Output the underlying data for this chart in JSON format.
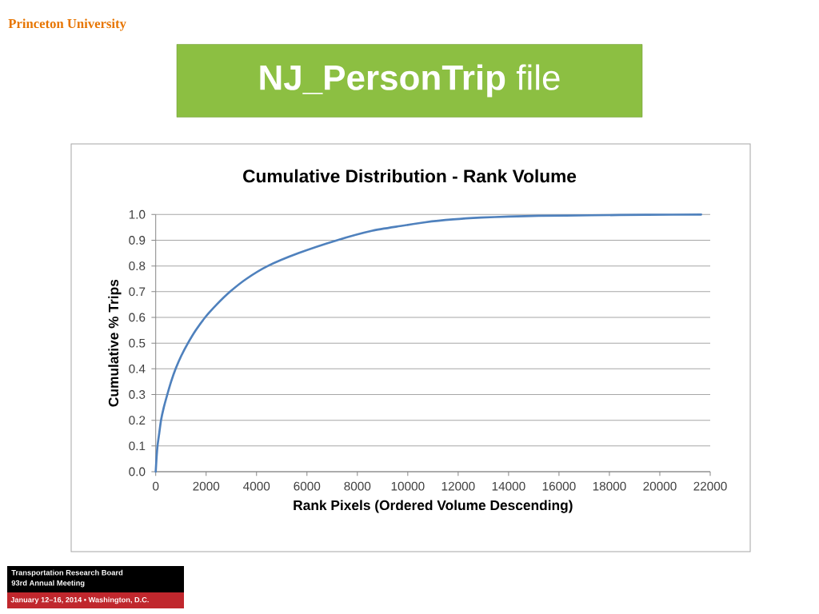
{
  "chart_data": {
    "type": "line",
    "title": "**NJ_PersonTrip** file",
    "subtitle": "Cumulative Distribution - Rank Volume",
    "xlabel": "Rank Pixels (Ordered Volume Descending)",
    "ylabel": "Cumulative % Trips",
    "annotations": [
      "Princeton University",
      "Transportation Research Board",
      "93rd Annual Meeting",
      "January 12–16, 2014 • Washington, D.C."
    ],
    "x": [
      0,
      30,
      70,
      140,
      210,
      320,
      460,
      610,
      790,
      1010,
      1280,
      1590,
      1960,
      2420,
      2950,
      3600,
      4450,
      5670,
      7200,
      8600,
      9700,
      10700,
      11800,
      12900,
      14000,
      15200,
      17300,
      19500,
      21640
    ],
    "series": [
      {
        "color": "#4f81bd",
        "values": [
          0,
          0.05,
          0.1,
          0.15,
          0.2,
          0.25,
          0.3,
          0.35,
          0.4,
          0.45,
          0.5,
          0.55,
          0.6,
          0.65,
          0.7,
          0.75,
          0.8,
          0.85,
          0.9,
          0.937,
          0.955,
          0.97,
          0.981,
          0.988,
          0.992,
          0.995,
          0.997,
          0.999,
          1.0
        ]
      }
    ],
    "xlim": [
      0,
      22000
    ],
    "ylim": [
      0,
      1
    ],
    "xticks": [
      0,
      2000,
      4000,
      6000,
      8000,
      10000,
      12000,
      14000,
      16000,
      18000,
      20000,
      22000
    ],
    "yticks": [
      {
        "value": 0,
        "label": "0.0"
      },
      0.1,
      0.2,
      0.3,
      0.4,
      0.5,
      0.6,
      0.7,
      0.8,
      0.9,
      {
        "value": 1,
        "label": "1.0"
      }
    ],
    "grid": "y"
  }
}
